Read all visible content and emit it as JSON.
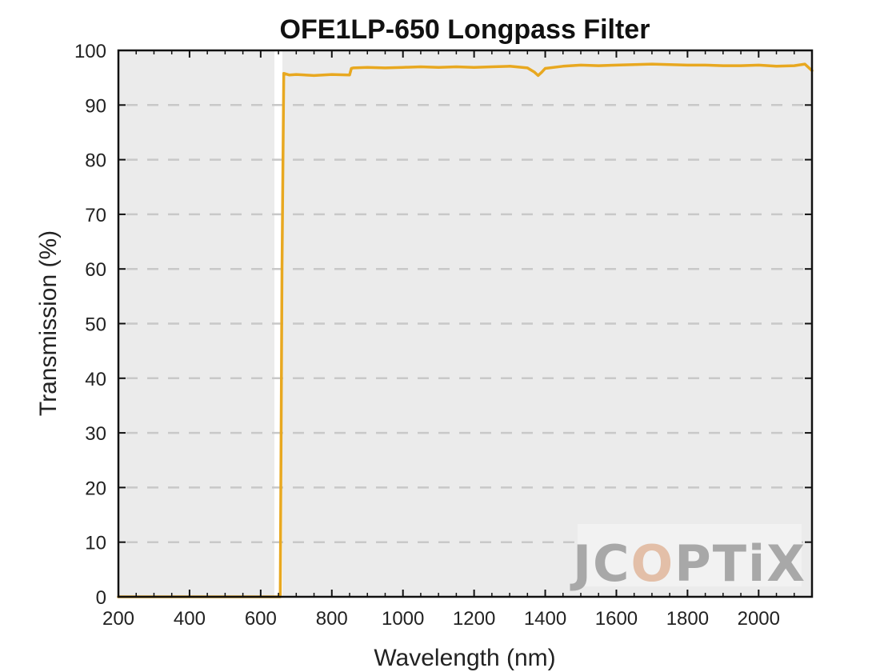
{
  "chart_data": {
    "type": "line",
    "title": "OFE1LP-650 Longpass Filter",
    "xlabel": "Wavelength (nm)",
    "ylabel": "Transmission (%)",
    "xlim": [
      200,
      2150
    ],
    "ylim": [
      0,
      100
    ],
    "xticks": [
      200,
      400,
      600,
      800,
      1000,
      1200,
      1400,
      1600,
      1800,
      2000
    ],
    "yticks": [
      0,
      10,
      20,
      30,
      40,
      50,
      60,
      70,
      80,
      90,
      100
    ],
    "grid": "horizontal dashed",
    "colors": {
      "line": "#E8A820",
      "plot_bg": "#EBEBEB",
      "grid": "#C8C8C8"
    },
    "series": [
      {
        "name": "",
        "x": [
          200,
          300,
          400,
          500,
          600,
          650,
          655,
          660,
          665,
          680,
          700,
          750,
          800,
          850,
          855,
          860,
          900,
          950,
          1000,
          1050,
          1100,
          1150,
          1200,
          1250,
          1300,
          1350,
          1370,
          1380,
          1390,
          1400,
          1450,
          1500,
          1550,
          1600,
          1650,
          1700,
          1750,
          1800,
          1850,
          1900,
          1950,
          2000,
          2050,
          2100,
          2130,
          2150
        ],
        "y": [
          0,
          0,
          0,
          0,
          0,
          0,
          0,
          60,
          95.8,
          95.5,
          95.6,
          95.4,
          95.6,
          95.5,
          96.7,
          96.8,
          96.9,
          96.8,
          96.9,
          97.0,
          96.9,
          97.0,
          96.9,
          97.0,
          97.1,
          96.8,
          96.0,
          95.4,
          96.0,
          96.7,
          97.1,
          97.3,
          97.2,
          97.3,
          97.4,
          97.5,
          97.4,
          97.3,
          97.3,
          97.2,
          97.2,
          97.3,
          97.1,
          97.2,
          97.5,
          96.3
        ]
      }
    ]
  },
  "watermark": {
    "parts": [
      "JC",
      "O",
      "PTiX"
    ],
    "colors": [
      "#A8A8A8",
      "#E3BFA8",
      "#A8A8A8"
    ]
  }
}
